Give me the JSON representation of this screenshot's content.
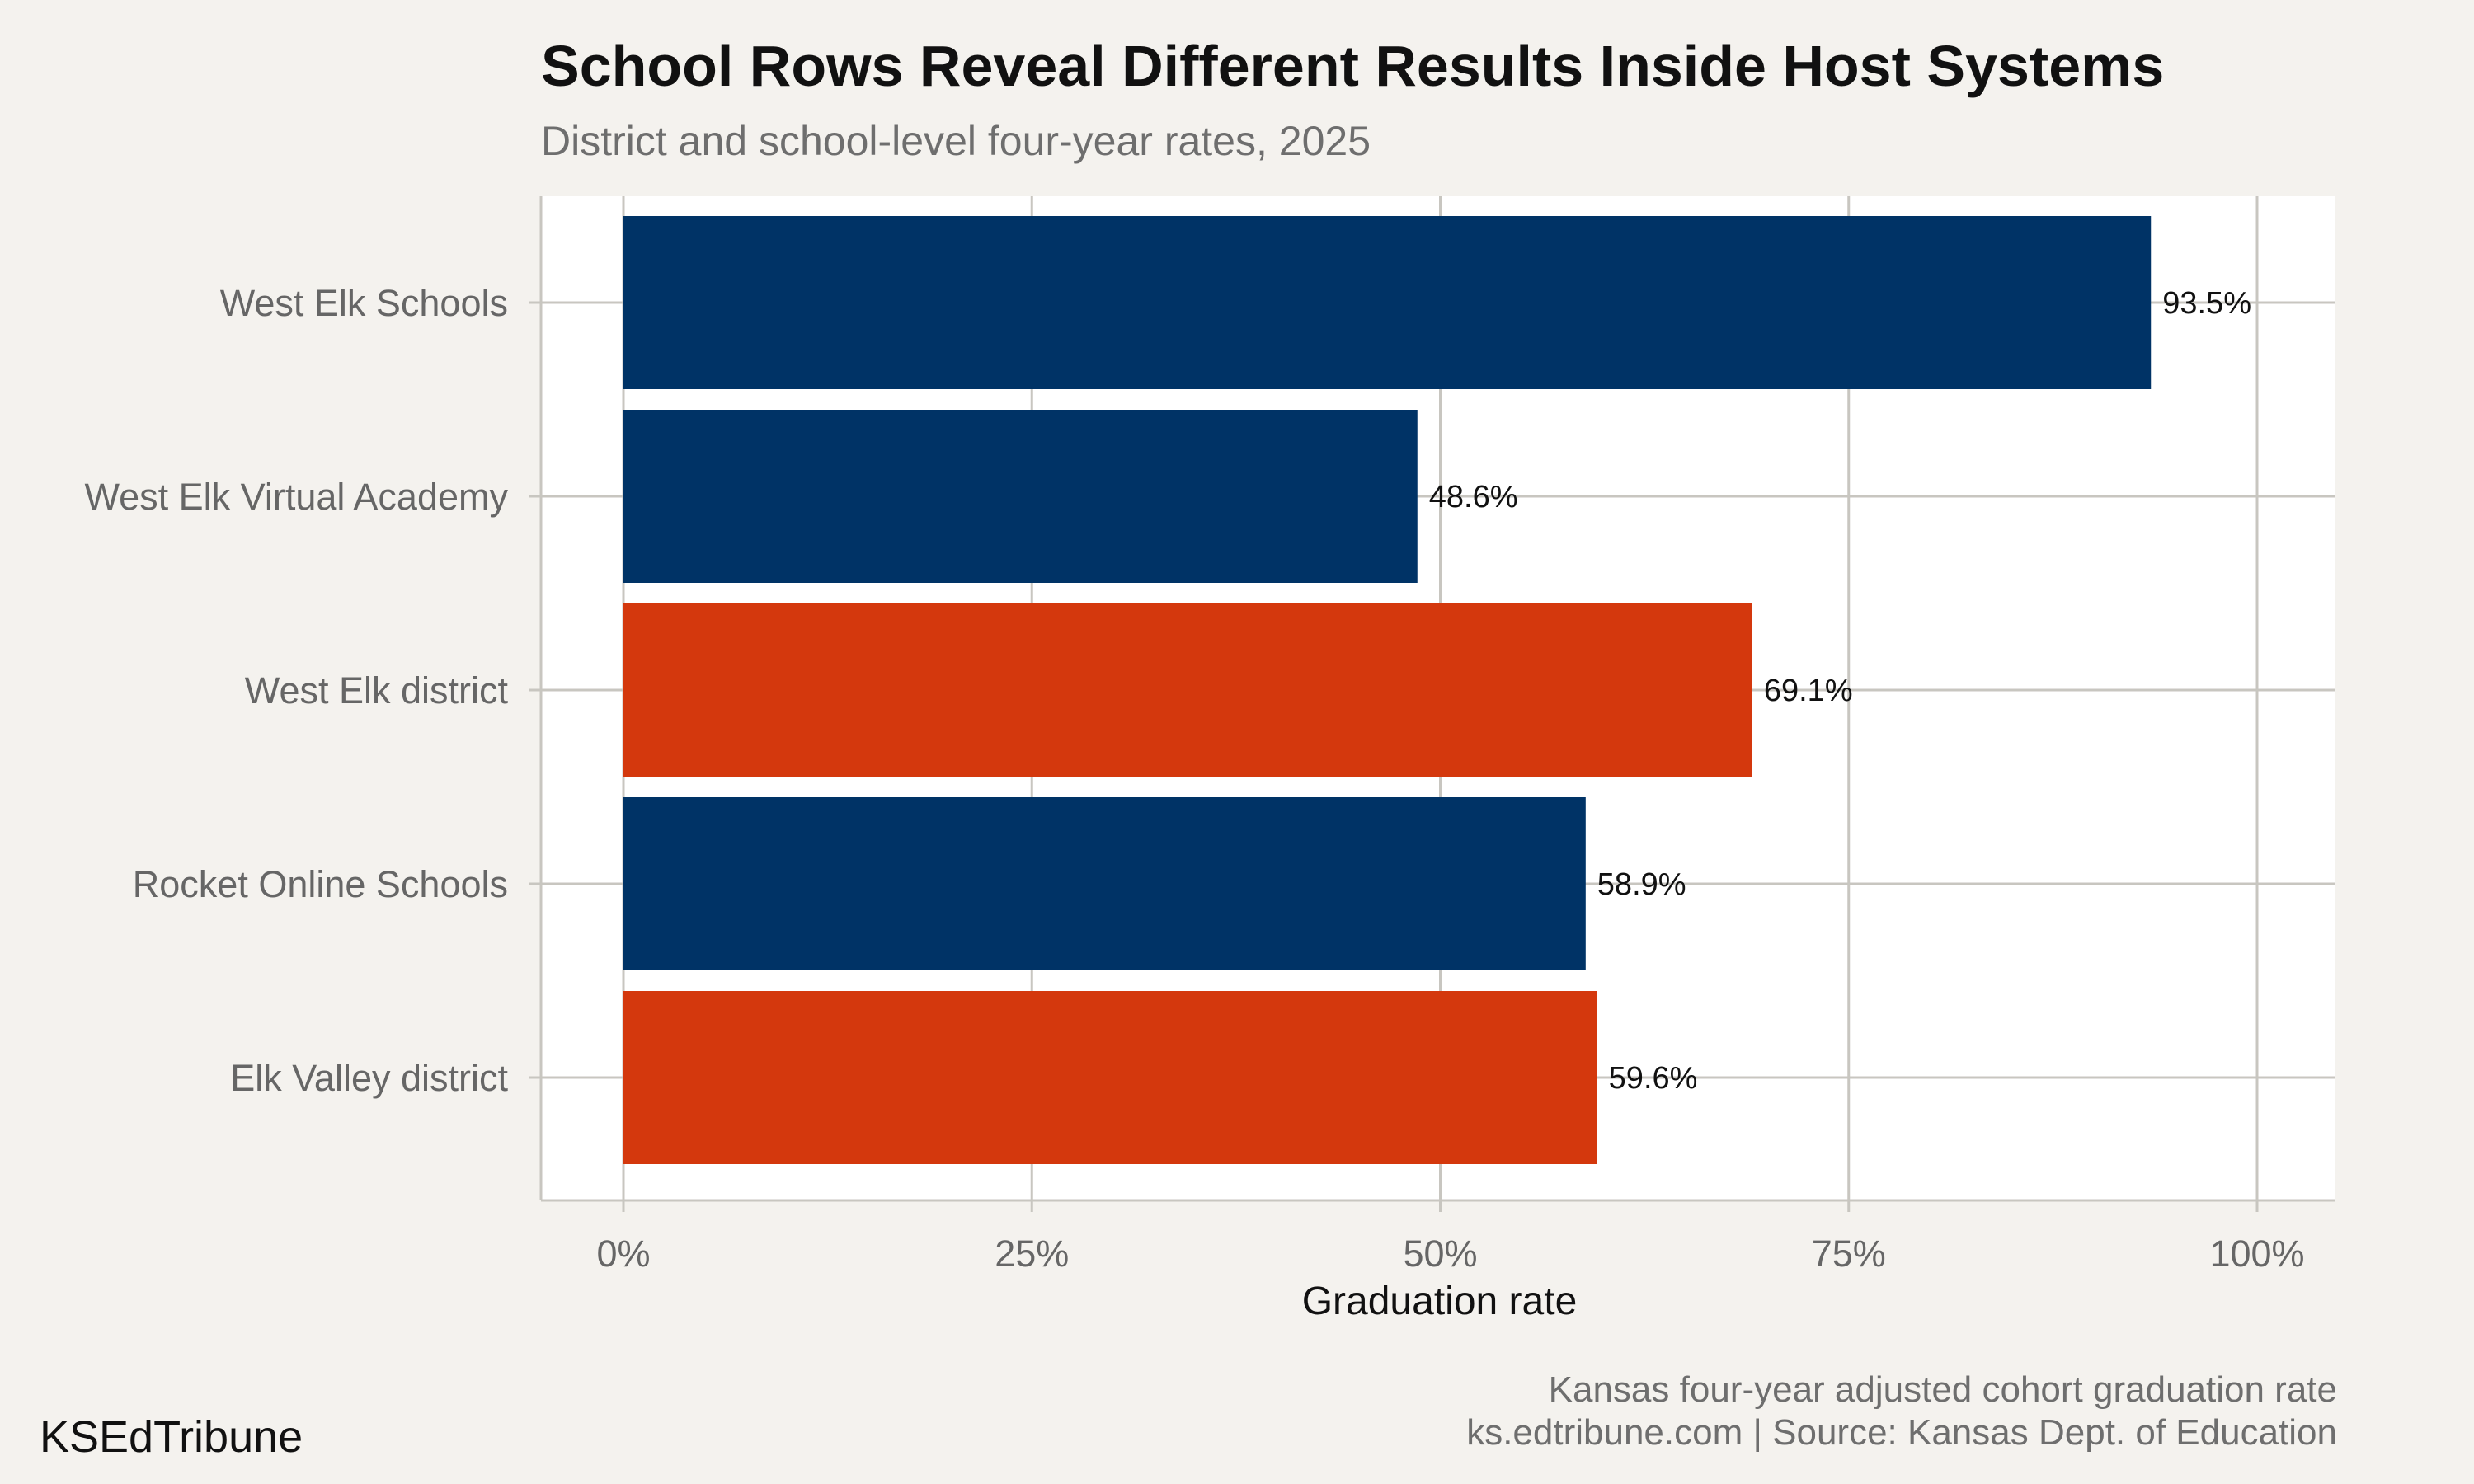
{
  "title": "School Rows Reveal Different Results Inside Host Systems",
  "subtitle": "District and school-level four-year rates, 2025",
  "footer": {
    "brand": "KSEdTribune",
    "note": "Kansas four-year adjusted cohort graduation rate",
    "source": "ks.edtribune.com | Source: Kansas Dept. of Education"
  },
  "colors": {
    "school": "#003366",
    "district": "#d4380d",
    "panel": "#ffffff",
    "background": "#f4f2ee",
    "grid": "#c8c6c0"
  },
  "chart_data": {
    "type": "bar",
    "orientation": "horizontal",
    "categories": [
      "West Elk Schools",
      "West Elk Virtual Academy",
      "West Elk district",
      "Rocket Online Schools",
      "Elk Valley district"
    ],
    "values": [
      93.5,
      48.6,
      69.1,
      58.9,
      59.6
    ],
    "value_labels": [
      "93.5%",
      "48.6%",
      "69.1%",
      "58.9%",
      "59.6%"
    ],
    "kinds": [
      "school",
      "school",
      "district",
      "school",
      "district"
    ],
    "xlabel": "Graduation rate",
    "ylabel": "",
    "xlim": [
      0,
      100
    ],
    "xticks": [
      0,
      25,
      50,
      75,
      100
    ],
    "xtick_labels": [
      "0%",
      "25%",
      "50%",
      "75%",
      "100%"
    ],
    "grid": true,
    "legend": "none"
  }
}
